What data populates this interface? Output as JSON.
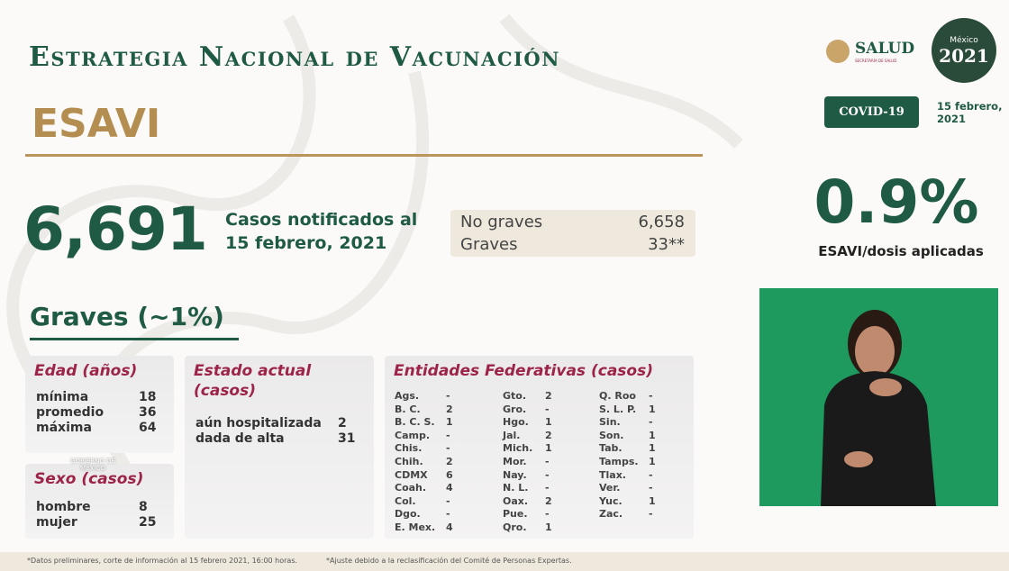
{
  "header": {
    "title": "Estrategia Nacional de Vacunación",
    "subtitle": "ESAVI"
  },
  "logos": {
    "salud": "SALUD",
    "salud_sub": "SECRETARÍA DE SALUD",
    "year_top": "México",
    "year": "2021",
    "gobierno": "GOBIERNO DE MÉXICO"
  },
  "badge": "COVID-19",
  "date": "15 febrero, 2021",
  "summary": {
    "total": "6,691",
    "caption": "Casos notificados al 15 febrero, 2021",
    "rows": [
      [
        "No graves",
        "6,658"
      ],
      [
        "Graves",
        "33**"
      ]
    ]
  },
  "ratio": {
    "value": "0.9%",
    "label": "ESAVI/dosis aplicadas"
  },
  "graves": {
    "heading": "Graves (~1%)",
    "edad": {
      "title": "Edad (años)",
      "rows": [
        [
          "mínima",
          "18"
        ],
        [
          "promedio",
          "36"
        ],
        [
          "máxima",
          "64"
        ]
      ]
    },
    "sexo": {
      "title": "Sexo (casos)",
      "rows": [
        [
          "hombre",
          "8"
        ],
        [
          "mujer",
          "25"
        ]
      ]
    },
    "estado": {
      "title": "Estado actual (casos)",
      "rows": [
        [
          "aún hospitalizada",
          "2"
        ],
        [
          "dada de alta",
          "31"
        ]
      ]
    },
    "entidades": {
      "title": "Entidades Federativas (casos)",
      "columns": [
        [
          [
            "Ags.",
            "-"
          ],
          [
            "B. C.",
            "2"
          ],
          [
            "B. C. S.",
            "1"
          ],
          [
            "Camp.",
            "-"
          ],
          [
            "Chis.",
            "-"
          ],
          [
            "Chih.",
            "2"
          ],
          [
            "CDMX",
            "6"
          ],
          [
            "Coah.",
            "4"
          ],
          [
            "Col.",
            "-"
          ],
          [
            "Dgo.",
            "-"
          ],
          [
            "E. Mex.",
            "4"
          ]
        ],
        [
          [
            "Gto.",
            "2"
          ],
          [
            "Gro.",
            "-"
          ],
          [
            "Hgo.",
            "1"
          ],
          [
            "Jal.",
            "2"
          ],
          [
            "Mich.",
            "1"
          ],
          [
            "Mor.",
            "-"
          ],
          [
            "Nay.",
            "-"
          ],
          [
            "N. L.",
            "-"
          ],
          [
            "Oax.",
            "2"
          ],
          [
            "Pue.",
            "-"
          ],
          [
            "Qro.",
            "1"
          ]
        ],
        [
          [
            "Q. Roo",
            "-"
          ],
          [
            "S. L. P.",
            "1"
          ],
          [
            "Sin.",
            "-"
          ],
          [
            "Son.",
            "1"
          ],
          [
            "Tab.",
            "1"
          ],
          [
            "Tamps.",
            "1"
          ],
          [
            "Tlax.",
            "-"
          ],
          [
            "Ver.",
            "-"
          ],
          [
            "Yuc.",
            "1"
          ],
          [
            "Zac.",
            "-"
          ]
        ]
      ]
    }
  },
  "footnotes": [
    "*Datos preliminares, corte de información al 15 febrero 2021, 16:00 horas.",
    "*Ajuste debido a la reclasificación del Comité de Personas Expertas."
  ]
}
